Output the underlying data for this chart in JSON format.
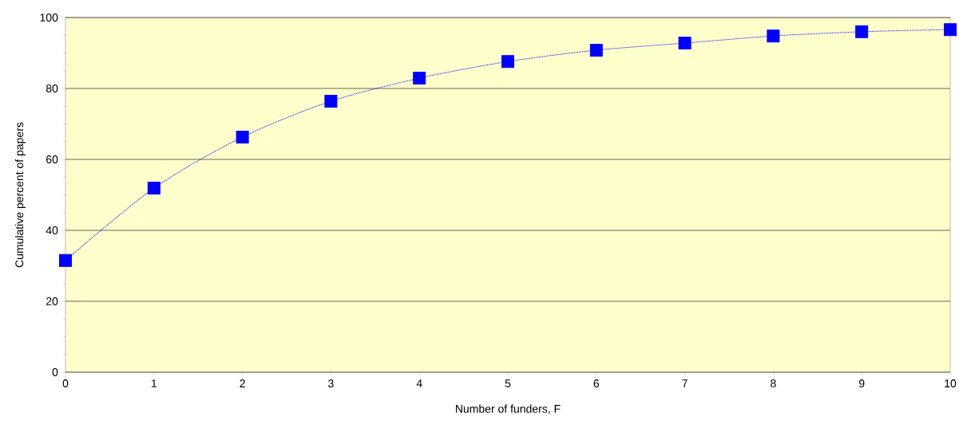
{
  "chart_data": {
    "type": "line",
    "xlabel": "Number of funders, F",
    "ylabel": "Cumulative percent of papers",
    "x": [
      0,
      1,
      2,
      3,
      4,
      5,
      6,
      7,
      8,
      9,
      10
    ],
    "values": [
      31.5,
      51.9,
      66.3,
      76.4,
      82.9,
      87.6,
      90.8,
      92.8,
      94.8,
      96.0,
      96.6
    ],
    "color": "#0000ff",
    "marker": "square",
    "line_style": "dotted",
    "grid": "y",
    "xlim": [
      0,
      10
    ],
    "xticks": [
      0,
      1,
      2,
      3,
      4,
      5,
      6,
      7,
      8,
      9,
      10
    ],
    "ylim": [
      0,
      100
    ],
    "yticks": [
      0,
      20,
      40,
      60,
      80,
      100
    ]
  }
}
